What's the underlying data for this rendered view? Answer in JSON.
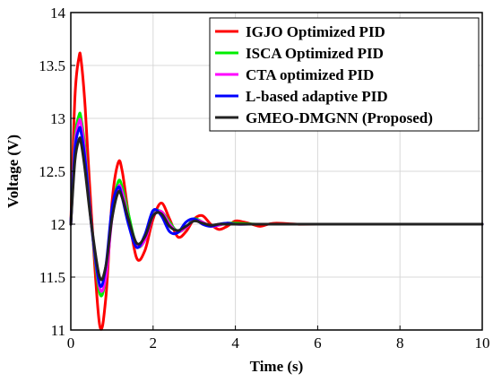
{
  "chart_data": {
    "type": "line",
    "xlabel": "Time (s)",
    "ylabel": "Voltage (V)",
    "xlim": [
      0,
      10
    ],
    "ylim": [
      11,
      14
    ],
    "xticks": [
      0,
      2,
      4,
      6,
      8,
      10
    ],
    "yticks": [
      11,
      11.5,
      12,
      12.5,
      13,
      13.5,
      14
    ],
    "grid": true,
    "legend_position": "top-right",
    "series": [
      {
        "name": "IGJO Optimized PID",
        "color": "#ff0000",
        "x": [
          0,
          0.1,
          0.2,
          0.25,
          0.35,
          0.5,
          0.7,
          0.85,
          1.0,
          1.15,
          1.25,
          1.4,
          1.6,
          1.8,
          2.0,
          2.2,
          2.4,
          2.6,
          2.8,
          3.0,
          3.2,
          3.4,
          3.6,
          3.8,
          4.0,
          4.2,
          4.4,
          4.6,
          4.8,
          5.0,
          5.5,
          6.0,
          10
        ],
        "y": [
          12.0,
          13.2,
          13.58,
          13.55,
          13.1,
          12.1,
          11.05,
          11.3,
          12.2,
          12.58,
          12.5,
          12.1,
          11.68,
          11.75,
          12.05,
          12.2,
          12.05,
          11.88,
          11.93,
          12.05,
          12.08,
          12.0,
          11.95,
          11.98,
          12.03,
          12.02,
          12.0,
          11.98,
          12.0,
          12.01,
          12.0,
          12.0,
          12.0
        ]
      },
      {
        "name": "ISCA Optimized PID",
        "color": "#00ee00",
        "x": [
          0,
          0.1,
          0.2,
          0.25,
          0.35,
          0.5,
          0.7,
          0.85,
          1.0,
          1.15,
          1.25,
          1.4,
          1.6,
          1.8,
          2.0,
          2.2,
          2.4,
          2.6,
          2.8,
          3.0,
          3.2,
          3.4,
          3.6,
          3.8,
          4.0,
          4.5,
          5.0,
          10
        ],
        "y": [
          12.0,
          12.8,
          13.03,
          13.0,
          12.7,
          12.0,
          11.35,
          11.5,
          12.1,
          12.4,
          12.35,
          12.1,
          11.8,
          11.85,
          12.1,
          12.12,
          12.02,
          11.93,
          11.97,
          12.05,
          12.02,
          11.98,
          11.99,
          12.01,
          12.01,
          12.0,
          12.0,
          12.0
        ]
      },
      {
        "name": "CTA optimized PID",
        "color": "#ff00ff",
        "x": [
          0,
          0.1,
          0.2,
          0.25,
          0.35,
          0.5,
          0.7,
          0.85,
          1.0,
          1.15,
          1.25,
          1.4,
          1.6,
          1.8,
          2.0,
          2.2,
          2.4,
          2.6,
          2.8,
          3.0,
          3.2,
          3.4,
          3.6,
          3.8,
          4.0,
          4.5,
          5.0,
          10
        ],
        "y": [
          12.0,
          12.75,
          12.97,
          12.95,
          12.65,
          12.0,
          11.4,
          11.5,
          12.05,
          12.35,
          12.3,
          12.05,
          11.8,
          11.85,
          12.08,
          12.12,
          12.0,
          11.93,
          11.97,
          12.04,
          12.02,
          11.98,
          11.99,
          12.01,
          12.0,
          12.0,
          12.0,
          12.0
        ]
      },
      {
        "name": "L-based adaptive PID",
        "color": "#0000ff",
        "x": [
          0,
          0.1,
          0.2,
          0.25,
          0.35,
          0.5,
          0.7,
          0.85,
          1.0,
          1.15,
          1.25,
          1.4,
          1.6,
          1.8,
          2.0,
          2.2,
          2.4,
          2.6,
          2.8,
          3.0,
          3.2,
          3.4,
          3.6,
          3.8,
          4.0,
          4.5,
          5.0,
          10
        ],
        "y": [
          12.0,
          12.7,
          12.9,
          12.87,
          12.6,
          12.0,
          11.43,
          11.6,
          12.15,
          12.35,
          12.25,
          12.0,
          11.78,
          11.9,
          12.13,
          12.08,
          11.93,
          11.92,
          12.02,
          12.05,
          12.0,
          11.98,
          12.0,
          12.01,
          12.0,
          12.0,
          12.0,
          12.0
        ]
      },
      {
        "name": "GMEO-DMGNN (Proposed)",
        "color": "#222222",
        "x": [
          0,
          0.1,
          0.2,
          0.25,
          0.35,
          0.5,
          0.7,
          0.85,
          1.0,
          1.15,
          1.25,
          1.4,
          1.6,
          1.8,
          2.0,
          2.2,
          2.4,
          2.6,
          2.8,
          3.0,
          3.2,
          3.4,
          3.6,
          3.8,
          4.0,
          4.5,
          5.0,
          10
        ],
        "y": [
          12.0,
          12.6,
          12.8,
          12.77,
          12.5,
          12.0,
          11.5,
          11.6,
          12.05,
          12.3,
          12.25,
          12.05,
          11.82,
          11.88,
          12.08,
          12.1,
          11.98,
          11.94,
          11.98,
          12.03,
          12.01,
          11.99,
          12.0,
          12.0,
          12.0,
          12.0,
          12.0,
          12.0
        ]
      }
    ]
  }
}
